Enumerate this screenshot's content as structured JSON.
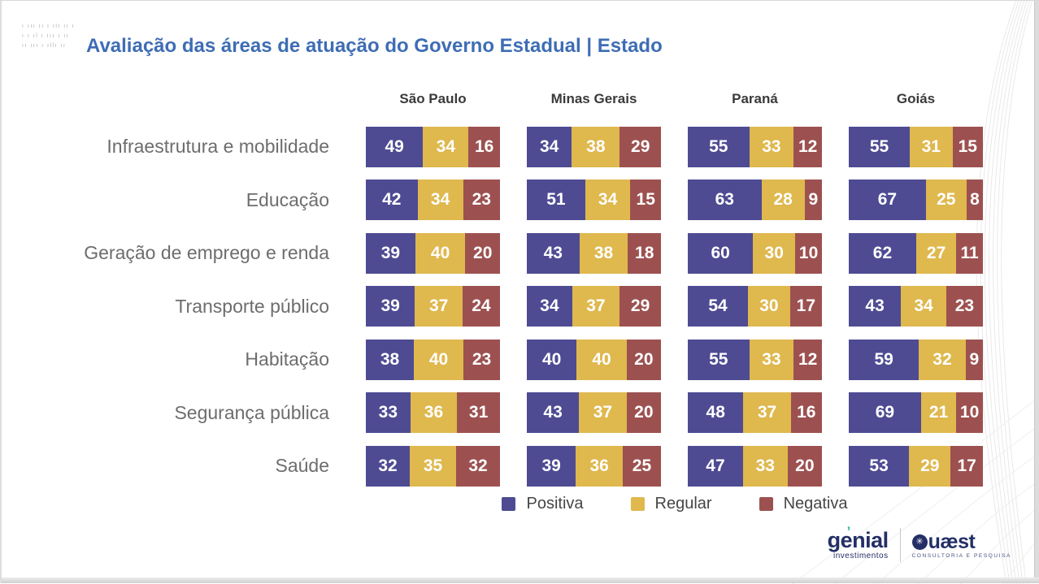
{
  "colors": {
    "title_blue": "#3e6db4",
    "header_dark": "#3a3a3a",
    "label_gray": "#6d6d6d",
    "legend_text": "#464646",
    "logo_navy": "#232f66",
    "logo_teal": "#2fb3a4"
  },
  "watermark": {
    "line1": "ı ııı ıı ı ılı ıı ı",
    "line2": "ı ı ıl ı ııı ı ıı",
    "line3": "ıı ııı ı ıllı ıı"
  },
  "title": "Avaliação das áreas de atuação do Governo Estadual | Estado",
  "chart_data": {
    "type": "bar",
    "variant": "horizontal-stacked-100",
    "title": "Avaliação das áreas de atuação do Governo Estadual | Estado",
    "columns": [
      "São Paulo",
      "Minas Gerais",
      "Paraná",
      "Goiás"
    ],
    "categories": [
      "Infraestrutura e mobilidade",
      "Educação",
      "Geração de emprego e renda",
      "Transporte público",
      "Habitação",
      "Segurança pública",
      "Saúde"
    ],
    "series": [
      {
        "name": "Positiva",
        "color": "#4e4b93"
      },
      {
        "name": "Regular",
        "color": "#dfb84e"
      },
      {
        "name": "Negativa",
        "color": "#9c5150"
      }
    ],
    "values": [
      [
        [
          49,
          34,
          16
        ],
        [
          34,
          38,
          29
        ],
        [
          55,
          33,
          12
        ],
        [
          55,
          31,
          15
        ]
      ],
      [
        [
          42,
          34,
          23
        ],
        [
          51,
          34,
          15
        ],
        [
          63,
          28,
          9
        ],
        [
          67,
          25,
          8
        ]
      ],
      [
        [
          39,
          40,
          20
        ],
        [
          43,
          38,
          18
        ],
        [
          60,
          30,
          10
        ],
        [
          62,
          27,
          11
        ]
      ],
      [
        [
          39,
          37,
          24
        ],
        [
          34,
          37,
          29
        ],
        [
          54,
          30,
          17
        ],
        [
          43,
          34,
          23
        ]
      ],
      [
        [
          38,
          40,
          23
        ],
        [
          40,
          40,
          20
        ],
        [
          55,
          33,
          12
        ],
        [
          59,
          32,
          9
        ]
      ],
      [
        [
          33,
          36,
          31
        ],
        [
          43,
          37,
          20
        ],
        [
          48,
          37,
          16
        ],
        [
          69,
          21,
          10
        ]
      ],
      [
        [
          32,
          35,
          32
        ],
        [
          39,
          36,
          25
        ],
        [
          47,
          33,
          20
        ],
        [
          53,
          29,
          17
        ]
      ]
    ],
    "legend_position": "bottom",
    "grid": false
  },
  "footer": {
    "genial": {
      "name": "genial",
      "subtitle": "investimentos",
      "accent": "’"
    },
    "quaest": {
      "name": "uæst",
      "icon": "✳",
      "subtitle": "CONSULTORIA E PESQUISA"
    }
  }
}
